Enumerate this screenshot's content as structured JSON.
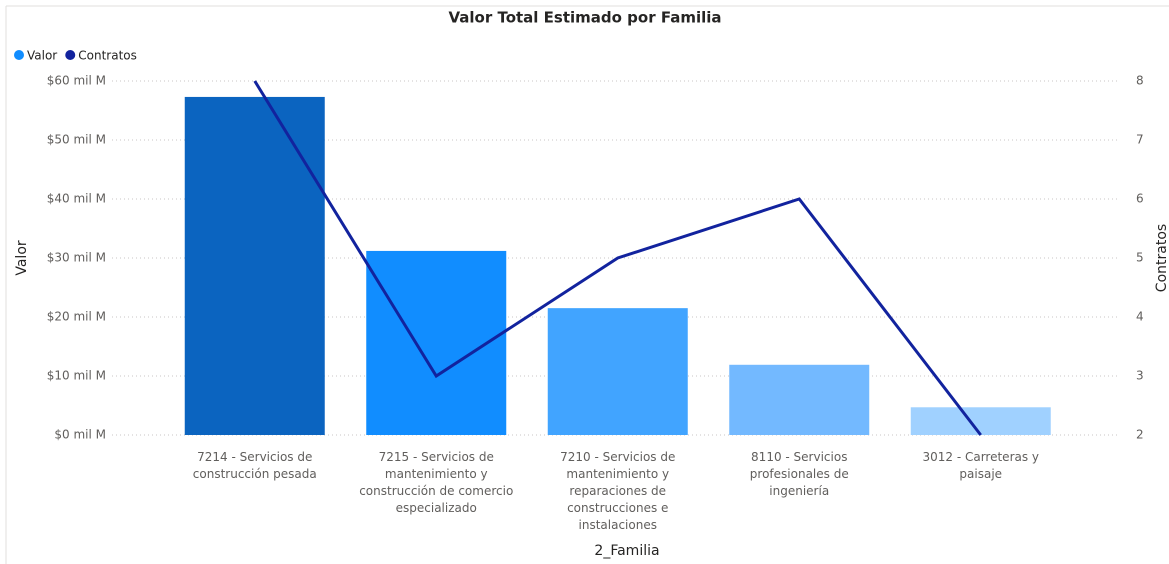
{
  "chart_data": {
    "type": "bar_line",
    "title": "Valor Total Estimado por Familia",
    "x_label": "2_Familia",
    "y_label": "Valor",
    "y2_label": "Contratos",
    "categories": [
      "7214 - Servicios de construcción pesada",
      "7215 - Servicios de mantenimiento y construcción de comercio especializado",
      "7210 - Servicios de mantenimiento y reparaciones de construcciones e instalaciones",
      "8110 - Servicios profesionales de ingeniería",
      "3012 - Carreteras y paisaje"
    ],
    "series": [
      {
        "name": "Valor",
        "type": "bar",
        "color": "#118dff",
        "colors": [
          "#0b64c0",
          "#118dff",
          "#41a4ff",
          "#73b9ff",
          "#a0d1ff"
        ],
        "values": [
          57.3,
          31.2,
          21.5,
          11.9,
          4.7
        ]
      },
      {
        "name": "Contratos",
        "type": "line",
        "axis": "y2",
        "color": "#12239e",
        "values": [
          8,
          3,
          5,
          6,
          2
        ]
      }
    ],
    "ylim": [
      0,
      60
    ],
    "yticks": [
      {
        "value": 0,
        "label": "$0 mil M"
      },
      {
        "value": 10,
        "label": "$10 mil M"
      },
      {
        "value": 20,
        "label": "$20 mil M"
      },
      {
        "value": 30,
        "label": "$30 mil M"
      },
      {
        "value": 40,
        "label": "$40 mil M"
      },
      {
        "value": 50,
        "label": "$50 mil M"
      },
      {
        "value": 60,
        "label": "$60 mil M"
      }
    ],
    "y2lim": [
      2,
      8
    ],
    "y2ticks": [
      2,
      3,
      4,
      5,
      6,
      7,
      8
    ],
    "grid": true,
    "legend": "top-left"
  }
}
